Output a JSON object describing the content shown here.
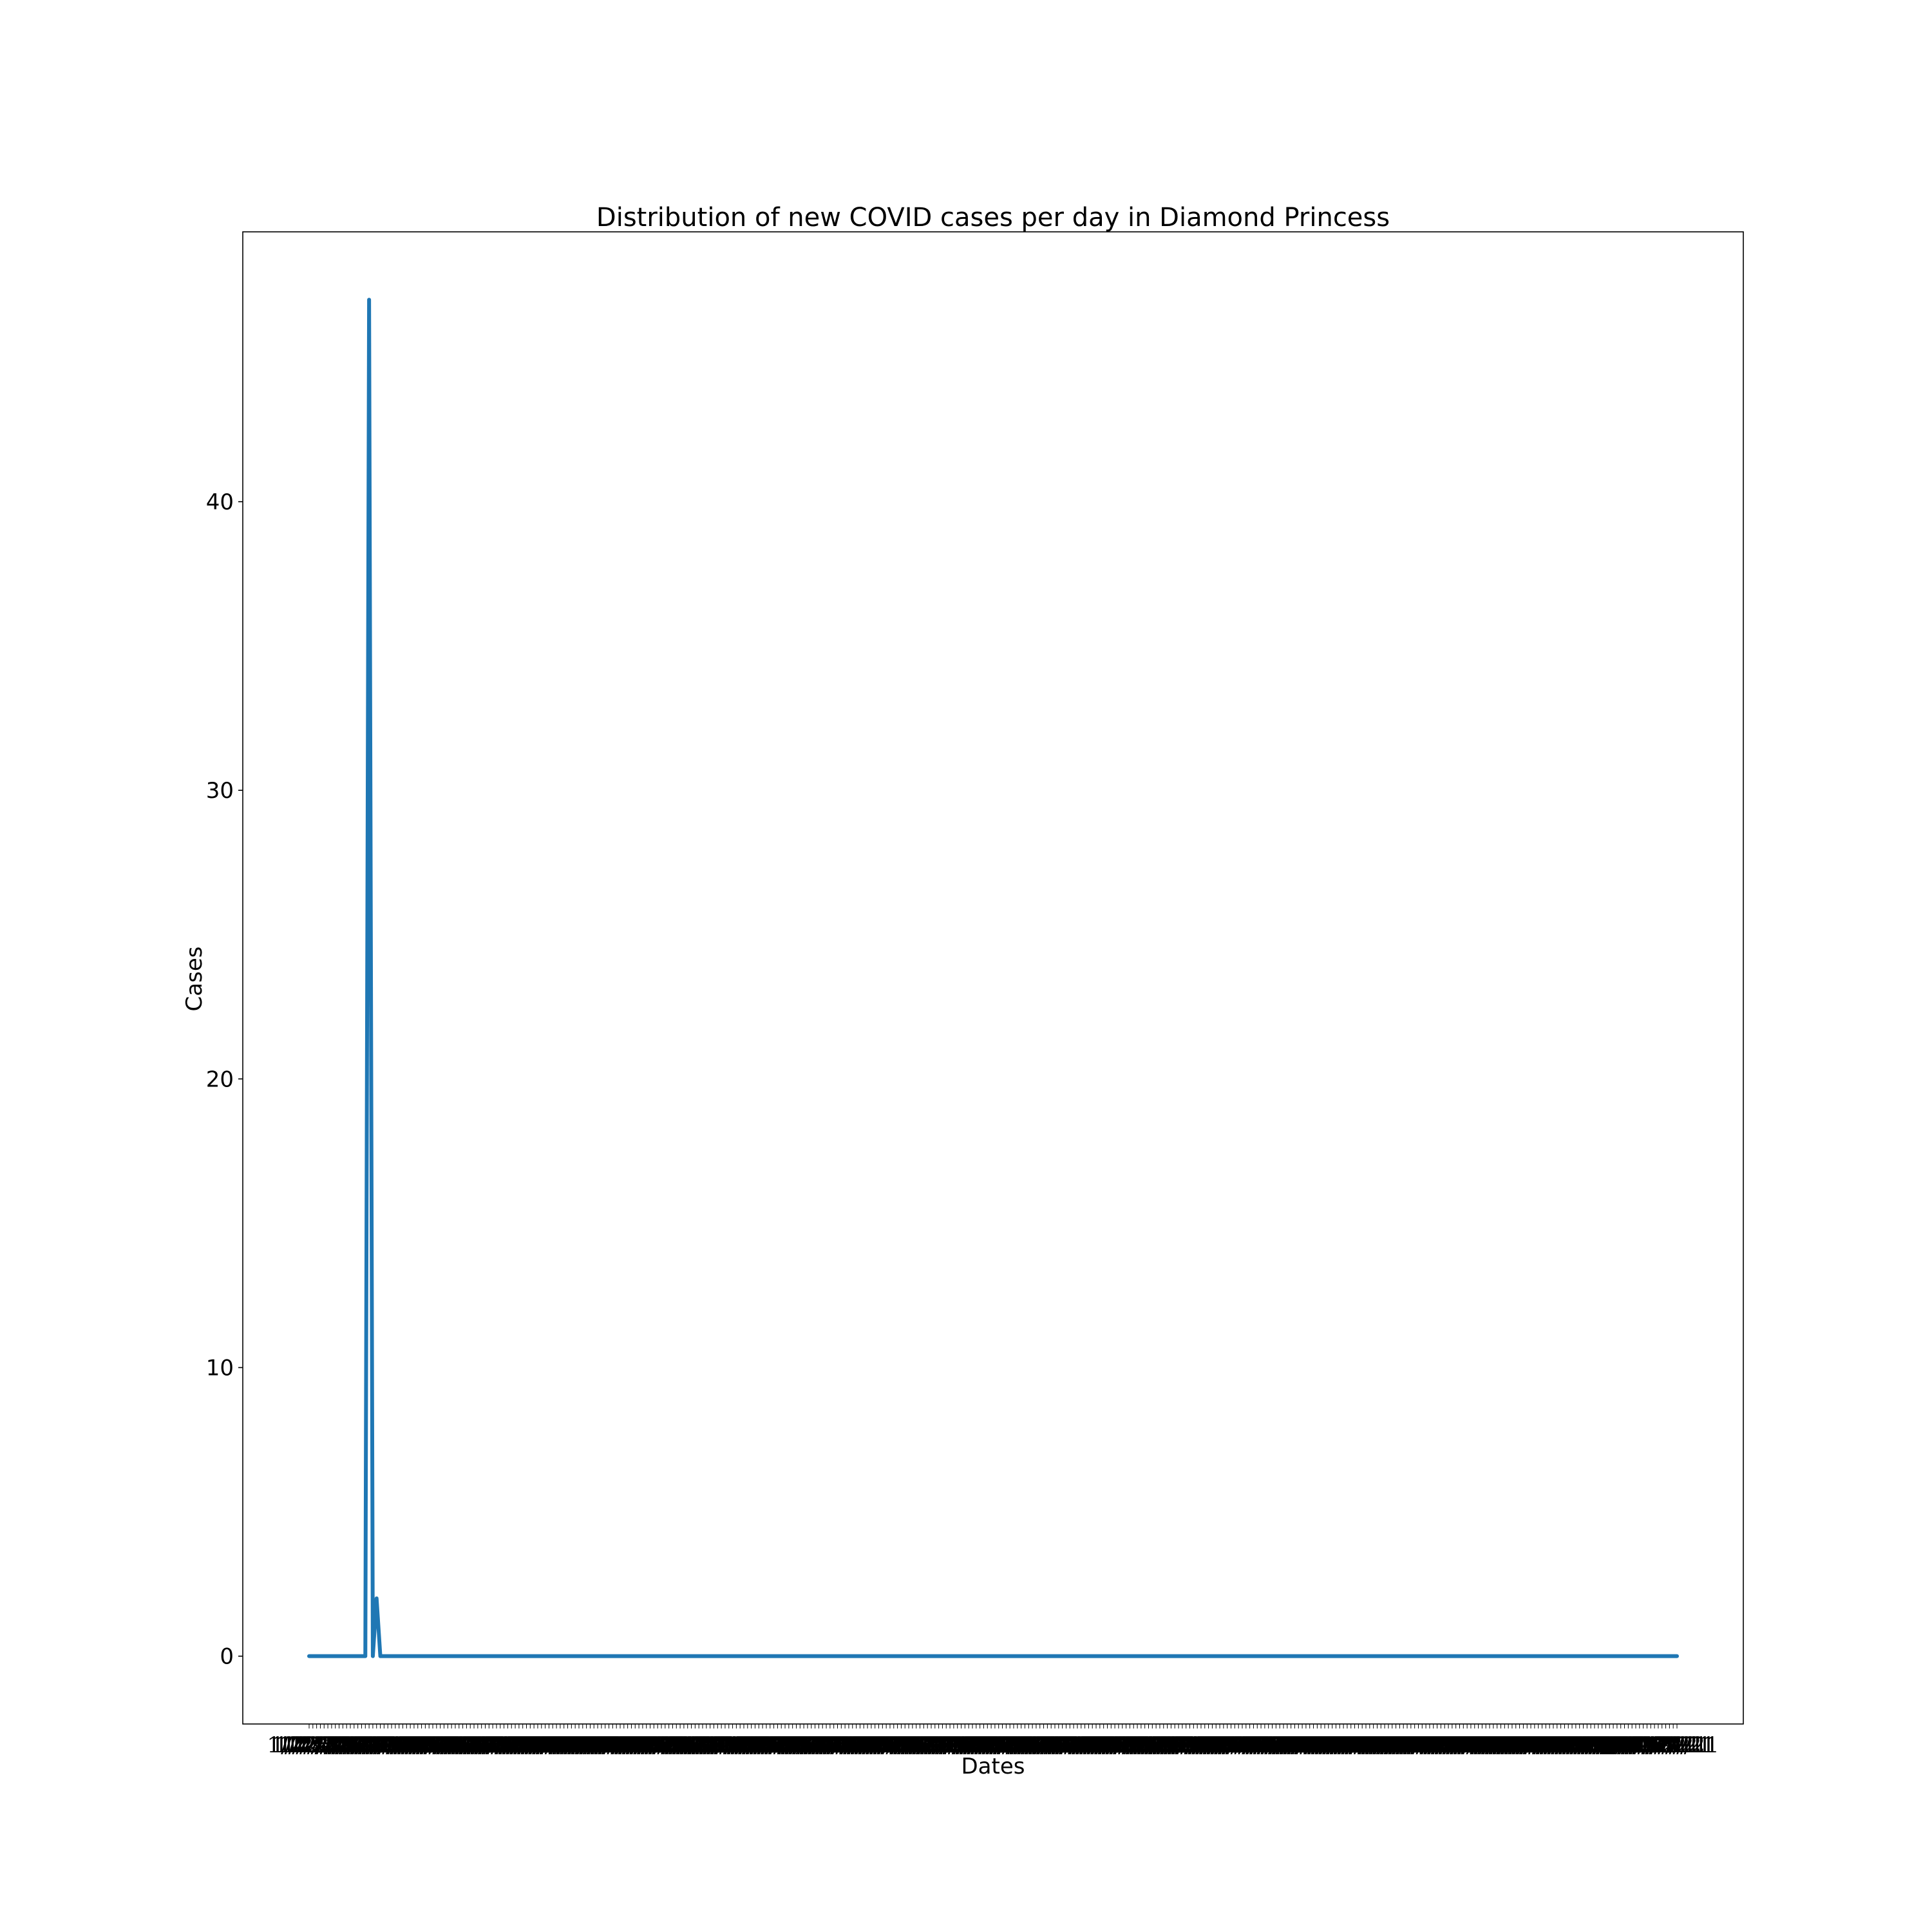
{
  "chart_data": {
    "type": "line",
    "title": "Distribution of new COVID cases per day in Diamond Princess",
    "xlabel": "Dates",
    "ylabel": "Cases",
    "x_axis": {
      "kind": "dates",
      "first": "1/22/20",
      "last": "1/21/21",
      "tick_labels_note": "one tick per date; labels overlap into an unreadable band"
    },
    "ylim": [
      -2.35,
      49.35
    ],
    "yticks": [
      0,
      10,
      20,
      30,
      40
    ],
    "grid": false,
    "legend": "none",
    "series": [
      {
        "color": "#1f77b4",
        "points": [
          {
            "x": "1/22/20",
            "y": 0
          },
          {
            "x": "2/6/20",
            "y": 0
          },
          {
            "x": "2/7/20",
            "y": 47
          },
          {
            "x": "2/8/20",
            "y": 0
          },
          {
            "x": "2/9/20",
            "y": 2
          },
          {
            "x": "2/10/20",
            "y": 0
          },
          {
            "x": "1/21/21",
            "y": 0
          }
        ]
      }
    ]
  }
}
